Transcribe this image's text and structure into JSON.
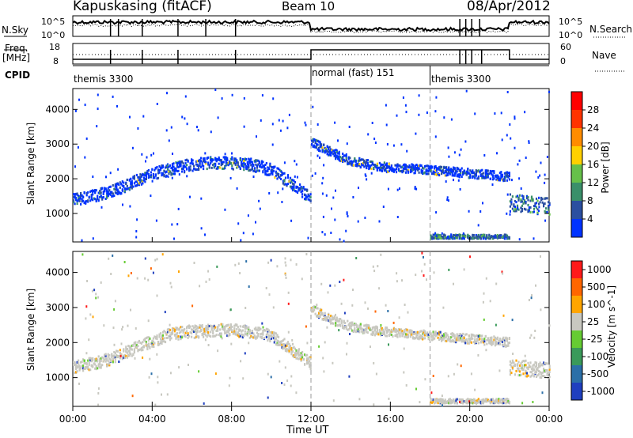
{
  "header": {
    "station": "Kapuskasing (fitACF)",
    "beam": "Beam 10",
    "date": "08/Apr/2012"
  },
  "strip": {
    "nsky_label": "N.Sky",
    "nsky_tick_top": "10^5",
    "nsky_tick_bottom": "10^0",
    "nsearch_label": "N.Search",
    "nsearch_tick_top": "10^5",
    "nsearch_tick_bottom": "10^0",
    "freq_label_line1": "Freq.",
    "freq_label_line2": "[MHz]",
    "freq_tick_top": "18",
    "freq_tick_bottom": "8",
    "nave_tick_top": "60",
    "nave_tick_bottom": "0",
    "nave_label": "Nave",
    "cpid_label": "CPID",
    "cpid_segments": [
      {
        "start_hour": 0,
        "end_hour": 12,
        "name": "themis 3300"
      },
      {
        "start_hour": 12,
        "end_hour": 18,
        "name": "normal (fast) 151"
      },
      {
        "start_hour": 18,
        "end_hour": 24,
        "name": "themis 3300"
      }
    ]
  },
  "chart_data": [
    {
      "type": "heatmap",
      "title": "",
      "parameter": "Power",
      "xlabel": "Time UT",
      "ylabel": "Slant Range [km]",
      "xlim": [
        0,
        24
      ],
      "ylim": [
        180,
        4600
      ],
      "x_ticks": [
        "00:00",
        "04:00",
        "08:00",
        "12:00",
        "16:00",
        "20:00",
        "00:00"
      ],
      "y_ticks": [
        1000,
        2000,
        3000,
        4000
      ],
      "colorbar": {
        "label": "Power [dB]",
        "ticks": [
          "28",
          "24",
          "20",
          "16",
          "12",
          "8",
          "4"
        ],
        "colors": [
          "#0033ff",
          "#2b4fa0",
          "#3a8f6a",
          "#66c04a",
          "#ffd000",
          "#ff8c00",
          "#ff3300",
          "#ff0000"
        ]
      },
      "bands": [
        {
          "x": [
            0,
            1,
            2,
            3,
            4,
            5,
            6,
            7,
            8,
            9,
            10,
            11,
            12
          ],
          "y": [
            1400,
            1500,
            1650,
            1900,
            2150,
            2300,
            2400,
            2450,
            2450,
            2400,
            2250,
            1850,
            1400
          ],
          "width": 350,
          "level": "low"
        },
        {
          "x": [
            12,
            13,
            14,
            15,
            16,
            17,
            18,
            19,
            20,
            21,
            22
          ],
          "y": [
            3050,
            2750,
            2500,
            2400,
            2300,
            2300,
            2250,
            2200,
            2150,
            2100,
            2050
          ],
          "width": 260,
          "level": "low"
        },
        {
          "x": [
            22,
            23,
            24
          ],
          "y": [
            1300,
            1250,
            1200
          ],
          "width": 500,
          "level": "mid"
        },
        {
          "x": [
            18,
            22
          ],
          "y": [
            330,
            330
          ],
          "width": 120,
          "level": "mid"
        }
      ]
    },
    {
      "type": "heatmap",
      "title": "",
      "parameter": "Velocity",
      "xlabel": "Time UT",
      "ylabel": "Slant Range [km]",
      "xlim": [
        0,
        24
      ],
      "ylim": [
        180,
        4600
      ],
      "x_ticks": [
        "00:00",
        "04:00",
        "08:00",
        "12:00",
        "16:00",
        "20:00",
        "00:00"
      ],
      "y_ticks": [
        1000,
        2000,
        3000,
        4000
      ],
      "colorbar": {
        "label": "Velocity [m s^-1]",
        "ticks": [
          "1000",
          "500",
          "100",
          "25",
          "-25",
          "-100",
          "-500",
          "-1000"
        ],
        "colors": [
          "#1f3fbf",
          "#2b6fa8",
          "#3a9a5a",
          "#66cc33",
          "#c8c8c0",
          "#ffa500",
          "#ff6600",
          "#ff1a1a"
        ]
      },
      "bands": [
        {
          "x": [
            0,
            1,
            2,
            3,
            4,
            5,
            6,
            7,
            8,
            9,
            10,
            11,
            12
          ],
          "y": [
            1300,
            1400,
            1550,
            1800,
            2050,
            2250,
            2300,
            2350,
            2350,
            2300,
            2200,
            1800,
            1400
          ],
          "width": 350,
          "level": "grey"
        },
        {
          "x": [
            12,
            13,
            14,
            15,
            16,
            17,
            18,
            19,
            20,
            21,
            22
          ],
          "y": [
            2950,
            2650,
            2450,
            2350,
            2300,
            2250,
            2200,
            2150,
            2100,
            2050,
            2000
          ],
          "width": 260,
          "level": "grey"
        },
        {
          "x": [
            22,
            23,
            24
          ],
          "y": [
            1300,
            1250,
            1200
          ],
          "width": 450,
          "level": "grey"
        },
        {
          "x": [
            18,
            22
          ],
          "y": [
            330,
            330
          ],
          "width": 120,
          "level": "grey"
        }
      ]
    }
  ]
}
